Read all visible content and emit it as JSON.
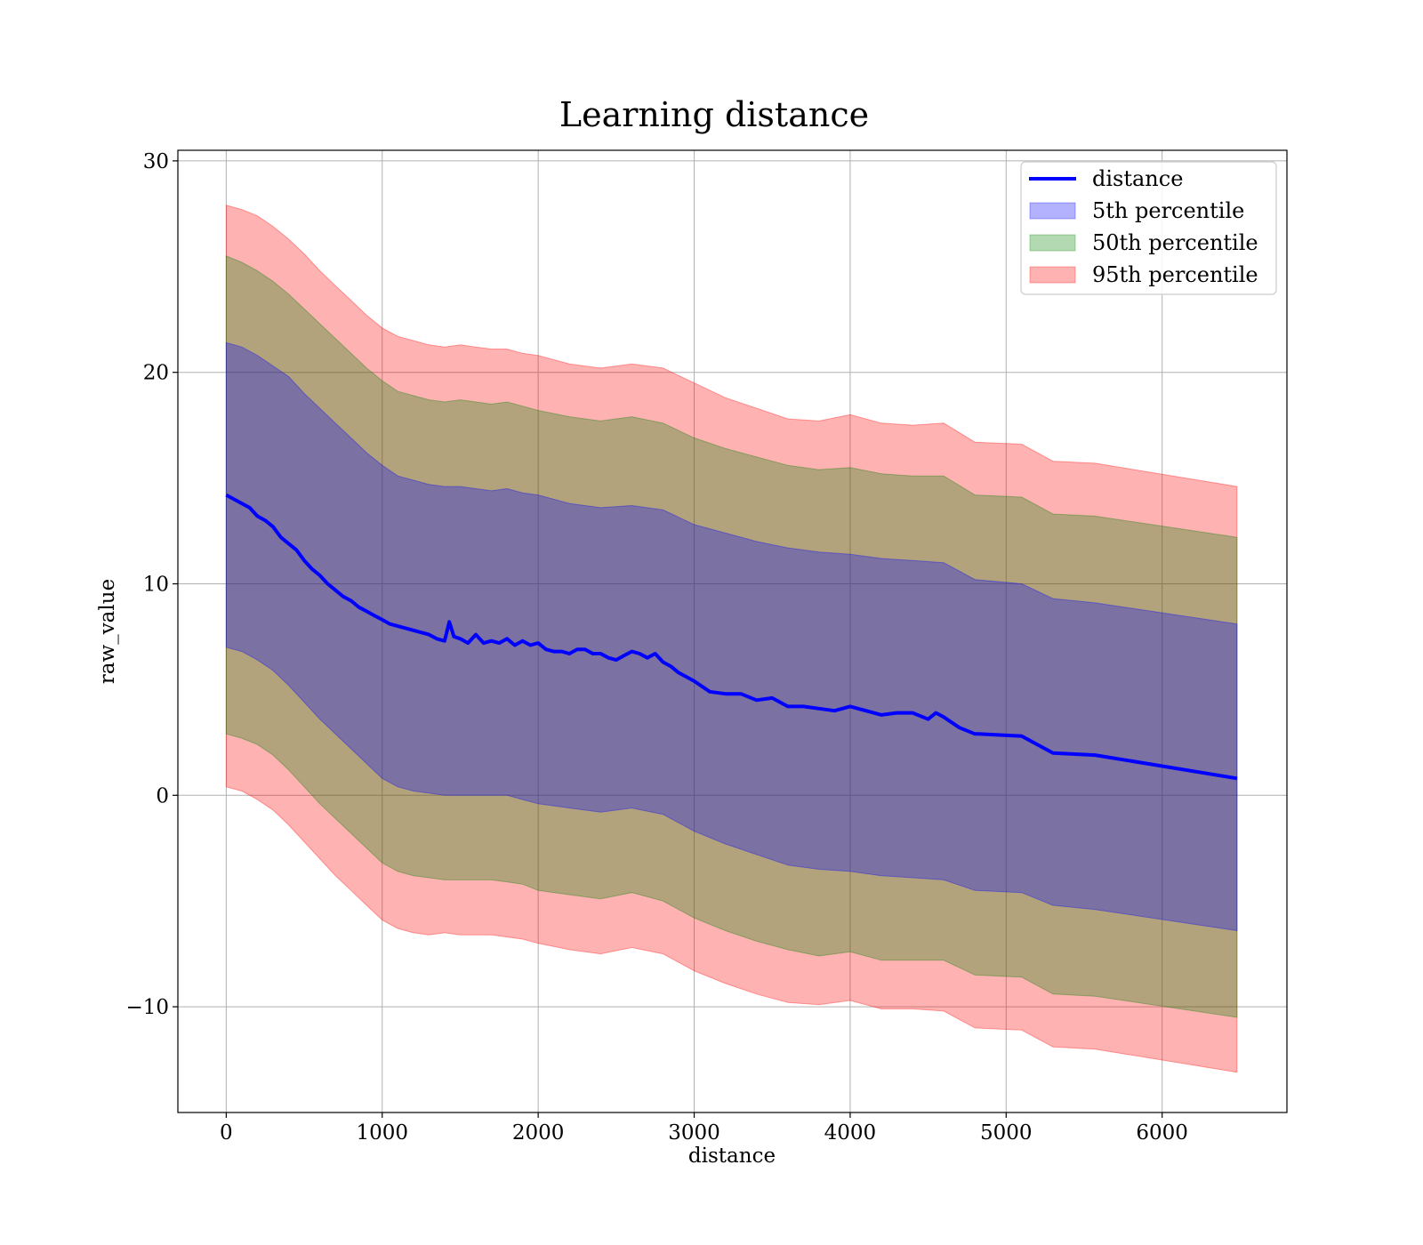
{
  "chart_data": {
    "type": "line",
    "title": "Learning distance",
    "xlabel": "distance",
    "ylabel": "raw_value",
    "xlim": [
      -310,
      6800
    ],
    "ylim": [
      -15,
      30.5
    ],
    "xticks": [
      0,
      1000,
      2000,
      3000,
      4000,
      5000,
      6000
    ],
    "yticks": [
      -10,
      0,
      10,
      20,
      30
    ],
    "xtick_labels": [
      "0",
      "1000",
      "2000",
      "3000",
      "4000",
      "5000",
      "6000"
    ],
    "ytick_labels": [
      "−10",
      "0",
      "10",
      "20",
      "30"
    ],
    "grid": true,
    "legend_position": "top-right",
    "colors": {
      "line": "#0000ff",
      "band_5th": "#0000ff",
      "band_50th": "#008000",
      "band_95th": "#ff0000",
      "combined_inner": "#a0727b",
      "combined_middle": "#c8967a",
      "outer": "#feb1b1"
    },
    "series": [
      {
        "name": "distance",
        "kind": "line",
        "x": [
          0,
          50,
          100,
          150,
          200,
          250,
          300,
          350,
          400,
          450,
          500,
          550,
          600,
          650,
          700,
          750,
          800,
          850,
          900,
          950,
          1000,
          1050,
          1100,
          1150,
          1200,
          1250,
          1300,
          1350,
          1400,
          1430,
          1460,
          1500,
          1550,
          1600,
          1650,
          1700,
          1750,
          1800,
          1850,
          1900,
          1950,
          2000,
          2050,
          2100,
          2150,
          2200,
          2250,
          2300,
          2350,
          2400,
          2450,
          2500,
          2550,
          2600,
          2650,
          2700,
          2750,
          2800,
          2850,
          2900,
          2950,
          3000,
          3100,
          3200,
          3300,
          3400,
          3500,
          3600,
          3700,
          3800,
          3900,
          4000,
          4100,
          4200,
          4300,
          4400,
          4500,
          4550,
          4600,
          4700,
          4800,
          4820,
          5100,
          5300,
          5570,
          6480
        ],
        "y": [
          14.2,
          14.0,
          13.8,
          13.6,
          13.2,
          13.0,
          12.7,
          12.2,
          11.9,
          11.6,
          11.1,
          10.7,
          10.4,
          10.0,
          9.7,
          9.4,
          9.2,
          8.9,
          8.7,
          8.5,
          8.3,
          8.1,
          8.0,
          7.9,
          7.8,
          7.7,
          7.6,
          7.4,
          7.3,
          8.2,
          7.5,
          7.4,
          7.2,
          7.6,
          7.2,
          7.3,
          7.2,
          7.4,
          7.1,
          7.3,
          7.1,
          7.2,
          6.9,
          6.8,
          6.8,
          6.7,
          6.9,
          6.9,
          6.7,
          6.7,
          6.5,
          6.4,
          6.6,
          6.8,
          6.7,
          6.5,
          6.7,
          6.3,
          6.1,
          5.8,
          5.6,
          5.4,
          4.9,
          4.8,
          4.8,
          4.5,
          4.6,
          4.2,
          4.2,
          4.1,
          4.0,
          4.2,
          4.0,
          3.8,
          3.9,
          3.9,
          3.6,
          3.9,
          3.7,
          3.2,
          2.9,
          2.9,
          2.8,
          2.0,
          1.9,
          0.8
        ]
      },
      {
        "name": "5th percentile",
        "kind": "band",
        "x": [
          0,
          100,
          200,
          300,
          400,
          500,
          600,
          700,
          800,
          900,
          1000,
          1100,
          1200,
          1300,
          1400,
          1500,
          1600,
          1700,
          1800,
          1900,
          2000,
          2200,
          2400,
          2600,
          2800,
          3000,
          3200,
          3400,
          3600,
          3800,
          4000,
          4200,
          4400,
          4600,
          4800,
          5100,
          5300,
          5570,
          6480
        ],
        "upper": [
          21.4,
          21.2,
          20.8,
          20.3,
          19.8,
          19.0,
          18.3,
          17.6,
          16.9,
          16.2,
          15.6,
          15.1,
          14.9,
          14.7,
          14.6,
          14.6,
          14.5,
          14.4,
          14.5,
          14.3,
          14.2,
          13.8,
          13.6,
          13.7,
          13.5,
          12.8,
          12.4,
          12.0,
          11.7,
          11.5,
          11.4,
          11.2,
          11.1,
          11.0,
          10.2,
          10.0,
          9.3,
          9.1,
          8.1
        ],
        "lower": [
          7.0,
          6.8,
          6.4,
          5.9,
          5.2,
          4.4,
          3.6,
          2.9,
          2.2,
          1.5,
          0.8,
          0.4,
          0.2,
          0.1,
          0.0,
          0.0,
          0.0,
          0.0,
          0.0,
          -0.2,
          -0.4,
          -0.6,
          -0.8,
          -0.6,
          -0.9,
          -1.7,
          -2.3,
          -2.8,
          -3.3,
          -3.5,
          -3.6,
          -3.8,
          -3.9,
          -4.0,
          -4.5,
          -4.6,
          -5.2,
          -5.4,
          -6.4
        ]
      },
      {
        "name": "50th percentile",
        "kind": "band",
        "x": [
          0,
          100,
          200,
          300,
          400,
          500,
          600,
          700,
          800,
          900,
          1000,
          1100,
          1200,
          1300,
          1400,
          1500,
          1600,
          1700,
          1800,
          1900,
          2000,
          2200,
          2400,
          2600,
          2800,
          3000,
          3200,
          3400,
          3600,
          3800,
          4000,
          4200,
          4400,
          4600,
          4800,
          5100,
          5300,
          5570,
          6480
        ],
        "upper": [
          25.5,
          25.2,
          24.8,
          24.3,
          23.7,
          23.0,
          22.3,
          21.6,
          20.9,
          20.2,
          19.6,
          19.1,
          18.9,
          18.7,
          18.6,
          18.7,
          18.6,
          18.5,
          18.6,
          18.4,
          18.2,
          17.9,
          17.7,
          17.9,
          17.6,
          16.9,
          16.4,
          16.0,
          15.6,
          15.4,
          15.5,
          15.2,
          15.1,
          15.1,
          14.2,
          14.1,
          13.3,
          13.2,
          12.2
        ],
        "lower": [
          2.9,
          2.7,
          2.4,
          1.9,
          1.2,
          0.4,
          -0.4,
          -1.1,
          -1.8,
          -2.5,
          -3.2,
          -3.6,
          -3.8,
          -3.9,
          -4.0,
          -4.0,
          -4.0,
          -4.0,
          -4.1,
          -4.2,
          -4.5,
          -4.7,
          -4.9,
          -4.6,
          -5.0,
          -5.8,
          -6.4,
          -6.9,
          -7.3,
          -7.6,
          -7.4,
          -7.8,
          -7.8,
          -7.8,
          -8.5,
          -8.6,
          -9.4,
          -9.5,
          -10.5
        ]
      },
      {
        "name": "95th percentile",
        "kind": "band",
        "x": [
          0,
          100,
          200,
          300,
          400,
          500,
          600,
          700,
          800,
          900,
          1000,
          1100,
          1200,
          1300,
          1400,
          1500,
          1600,
          1700,
          1800,
          1900,
          2000,
          2200,
          2400,
          2600,
          2800,
          3000,
          3200,
          3400,
          3600,
          3800,
          4000,
          4200,
          4400,
          4600,
          4800,
          5100,
          5300,
          5570,
          6480
        ],
        "upper": [
          27.9,
          27.7,
          27.4,
          26.9,
          26.3,
          25.6,
          24.8,
          24.1,
          23.4,
          22.7,
          22.1,
          21.7,
          21.5,
          21.3,
          21.2,
          21.3,
          21.2,
          21.1,
          21.1,
          20.9,
          20.8,
          20.4,
          20.2,
          20.4,
          20.2,
          19.5,
          18.8,
          18.3,
          17.8,
          17.7,
          18.0,
          17.6,
          17.5,
          17.6,
          16.7,
          16.6,
          15.8,
          15.7,
          14.6
        ],
        "lower": [
          0.4,
          0.2,
          -0.2,
          -0.7,
          -1.4,
          -2.2,
          -3.0,
          -3.8,
          -4.5,
          -5.2,
          -5.9,
          -6.3,
          -6.5,
          -6.6,
          -6.5,
          -6.6,
          -6.6,
          -6.6,
          -6.7,
          -6.8,
          -7.0,
          -7.3,
          -7.5,
          -7.2,
          -7.5,
          -8.3,
          -8.9,
          -9.4,
          -9.8,
          -9.9,
          -9.7,
          -10.1,
          -10.1,
          -10.2,
          -11.0,
          -11.1,
          -11.9,
          -12.0,
          -13.1
        ]
      }
    ]
  }
}
